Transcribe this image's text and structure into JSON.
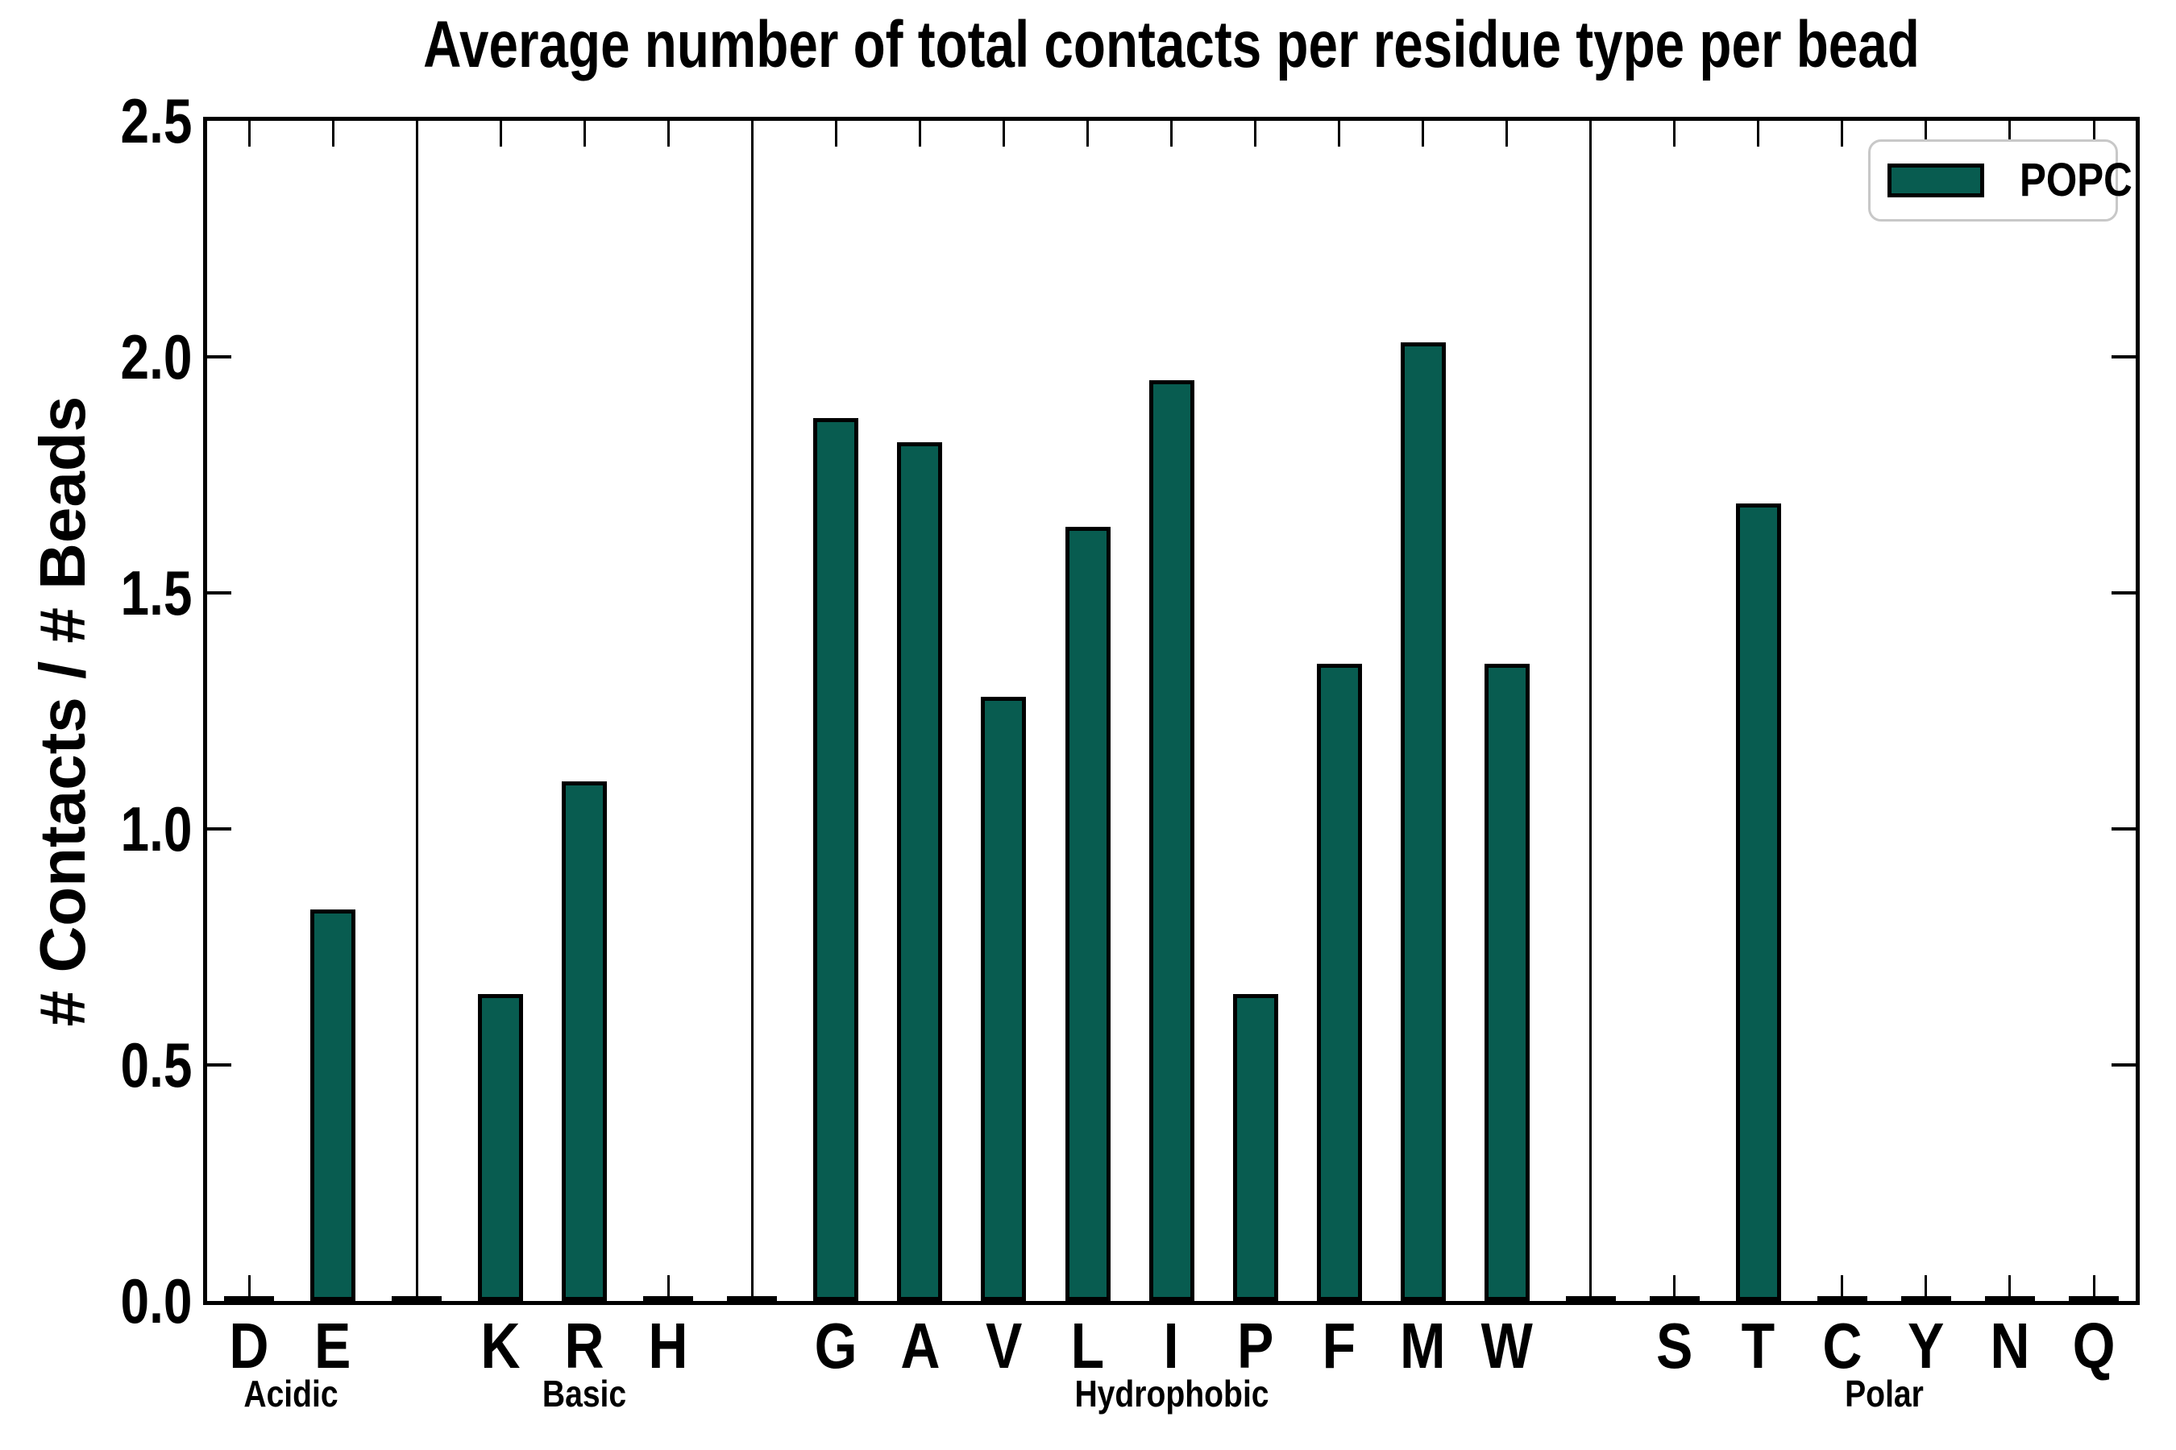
{
  "title": "Average number of total contacts per residue type per bead",
  "ylabel": "# Contacts / # Beads",
  "colors": {
    "bar_fill": "#085C50",
    "bar_edge": "#000000",
    "axis": "#000000",
    "legend_border": "#c8c8c8",
    "background": "#ffffff"
  },
  "legend": {
    "label": "POPC"
  },
  "chart_data": {
    "type": "bar",
    "title": "Average number of total contacts per residue type per bead",
    "xlabel": "",
    "ylabel": "# Contacts / # Beads",
    "ylim": [
      0,
      2.5
    ],
    "yticks": [
      "0.0",
      "0.5",
      "1.0",
      "1.5",
      "2.0",
      "2.5"
    ],
    "ytick_values": [
      0.0,
      0.5,
      1.0,
      1.5,
      2.0,
      2.5
    ],
    "grid": false,
    "tick_direction": "in",
    "legend": {
      "position": "upper right",
      "entries": [
        {
          "label": "POPC",
          "color": "#085C50"
        }
      ]
    },
    "series_name": "POPC",
    "groups": [
      {
        "label": "Acidic",
        "categories": [
          "D",
          "E"
        ],
        "values": [
          0.0,
          0.83
        ]
      },
      {
        "label": "Basic",
        "categories": [
          "K",
          "R",
          "H"
        ],
        "values": [
          0.65,
          1.1,
          0.0
        ]
      },
      {
        "label": "Hydrophobic",
        "categories": [
          "G",
          "A",
          "V",
          "L",
          "I",
          "P",
          "F",
          "M",
          "W"
        ],
        "values": [
          1.87,
          1.82,
          1.28,
          1.64,
          1.95,
          0.65,
          1.35,
          2.03,
          1.35
        ]
      },
      {
        "label": "Polar",
        "categories": [
          "S",
          "T",
          "C",
          "Y",
          "N",
          "Q"
        ],
        "values": [
          0.0,
          1.69,
          0.0,
          0.0,
          0.0,
          0.0
        ]
      }
    ],
    "group_separator_lines": true,
    "zero_value_bars_render_as_edge_bump": true
  }
}
